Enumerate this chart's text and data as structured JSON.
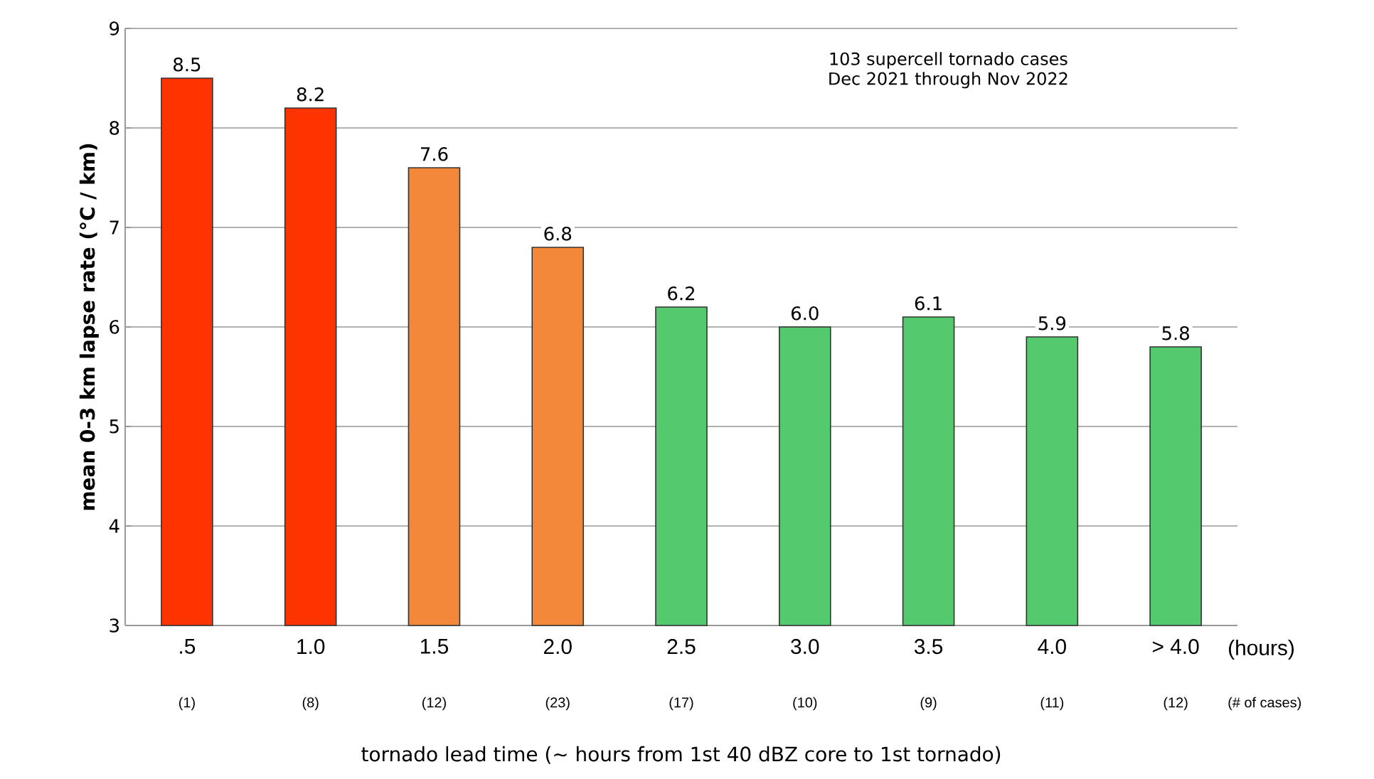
{
  "chart_data": {
    "type": "bar",
    "ylabel": "mean 0-3 km lapse rate (°C / km)",
    "xlabel": "tornado lead time (~ hours from 1st 40 dBZ core to 1st tornado)",
    "categories": [
      ".5",
      "1.0",
      "1.5",
      "2.0",
      "2.5",
      "3.0",
      "3.5",
      "4.0",
      "> 4.0"
    ],
    "values": [
      8.5,
      8.2,
      7.6,
      6.8,
      6.2,
      6.0,
      6.1,
      5.9,
      5.8
    ],
    "colors": [
      "#ff3300",
      "#ff3300",
      "#f4883a",
      "#f4883a",
      "#55c96e",
      "#55c96e",
      "#55c96e",
      "#55c96e",
      "#55c96e"
    ],
    "ylim": [
      3,
      9
    ],
    "yticks": [
      3,
      4,
      5,
      6,
      7,
      8,
      9
    ],
    "grid": "y",
    "value_labels": [
      "8.5",
      "8.2",
      "7.6",
      "6.8",
      "6.2",
      "6.0",
      "6.1",
      "5.9",
      "5.8"
    ],
    "annotations": [
      "103 supercell tornado cases",
      "Dec 2021 through Nov 2022",
      "(hours)",
      "(# of cases)",
      "(1)",
      "(8)",
      "(12)",
      "(23)",
      "(17)",
      "(10)",
      "(9)",
      "(11)",
      "(12)"
    ]
  }
}
